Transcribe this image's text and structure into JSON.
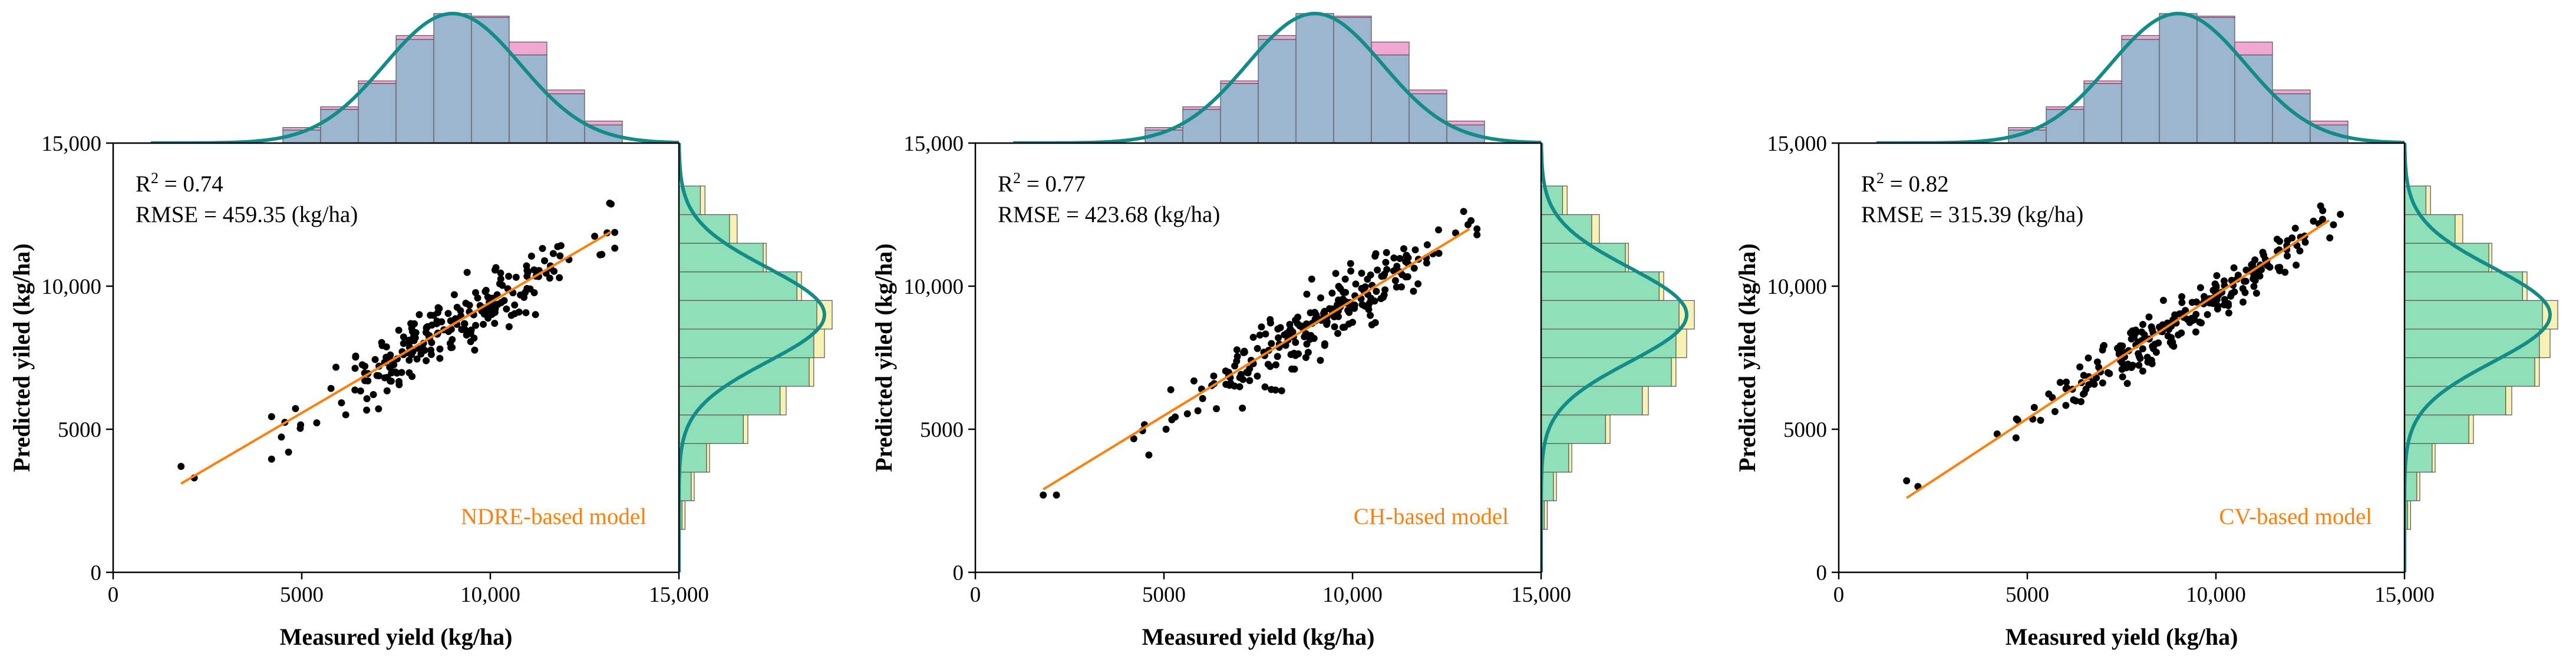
{
  "colors": {
    "points": "#000000",
    "fit_line": "#ff7f0e",
    "model_label": "#ff7f0e",
    "density_curve": "#138b87",
    "hist_measured": "#f0a8d2",
    "hist_predicted_measured": "#7ad6dc",
    "hist_overlap_top": "#9db6d0",
    "hist_predicted": "#f7f2b4",
    "hist_overlap_right": "#8fdfb8"
  },
  "chart_data": [
    {
      "type": "scatter",
      "model_label": "NDRE-based model",
      "r2_label": "R",
      "r2_sup": "2",
      "r2_value": " = 0.74",
      "rmse_text": "RMSE = 459.35 (kg/ha)",
      "xlabel": "Measured yield (kg/ha)",
      "ylabel": "Predicted yiled (kg/ha)",
      "xlim": [
        0,
        15000
      ],
      "ylim": [
        0,
        15000
      ],
      "xticks": [
        0,
        5000,
        10000,
        15000
      ],
      "xtick_labels": [
        "0",
        "5000",
        "10,000",
        "15,000"
      ],
      "yticks": [
        0,
        5000,
        10000,
        15000
      ],
      "ytick_labels": [
        "0",
        "5000",
        "10,000",
        "15,000"
      ],
      "fit_line": {
        "x": [
          1800,
          13200
        ],
        "y": [
          3100,
          11900
        ]
      },
      "scatter": {
        "n": 230,
        "seed": 11,
        "mean": 9000,
        "sd": 1800,
        "slope": 0.77,
        "intercept": 1700,
        "noise": 950,
        "extra": [
          [
            1800,
            3700
          ],
          [
            2150,
            3300
          ],
          [
            4650,
            4200
          ]
        ]
      },
      "hist_top": {
        "bins": [
          5000,
          6000,
          7000,
          8000,
          9000,
          10000,
          11000,
          12000,
          13000
        ],
        "measured": [
          0.12,
          0.28,
          0.48,
          0.83,
          1.0,
          0.98,
          0.78,
          0.41,
          0.17
        ],
        "predicted": [
          0.1,
          0.26,
          0.46,
          0.8,
          1.0,
          0.97,
          0.68,
          0.38,
          0.14
        ]
      },
      "hist_right": {
        "bins": [
          2000,
          3000,
          4000,
          5000,
          6000,
          7000,
          8000,
          9000,
          10000,
          11000,
          12000,
          13000
        ],
        "predicted": [
          0.04,
          0.1,
          0.2,
          0.45,
          0.7,
          0.88,
          0.95,
          1.0,
          0.8,
          0.57,
          0.38,
          0.17
        ],
        "measured": [
          0.02,
          0.08,
          0.18,
          0.42,
          0.66,
          0.85,
          0.88,
          0.9,
          0.77,
          0.55,
          0.33,
          0.14
        ]
      },
      "density": {
        "top_mean": 9000,
        "top_sd": 1800,
        "right_mean": 9000,
        "right_sd": 1650
      }
    },
    {
      "type": "scatter",
      "model_label": "CH-based model",
      "r2_label": "R",
      "r2_sup": "2",
      "r2_value": " = 0.77",
      "rmse_text": "RMSE = 423.68 (kg/ha)",
      "xlabel": "Measured yield (kg/ha)",
      "ylabel": "Predicted yiled (kg/ha)",
      "xlim": [
        0,
        15000
      ],
      "ylim": [
        0,
        15000
      ],
      "xticks": [
        0,
        5000,
        10000,
        15000
      ],
      "xtick_labels": [
        "0",
        "5000",
        "10,000",
        "15,000"
      ],
      "yticks": [
        0,
        5000,
        10000,
        15000
      ],
      "ytick_labels": [
        "0",
        "5000",
        "10,000",
        "15,000"
      ],
      "fit_line": {
        "x": [
          1800,
          13100
        ],
        "y": [
          2900,
          12000
        ]
      },
      "scatter": {
        "n": 230,
        "seed": 23,
        "mean": 9000,
        "sd": 1800,
        "slope": 0.8,
        "intercept": 1450,
        "noise": 900,
        "extra": [
          [
            1800,
            2700
          ],
          [
            2150,
            2700
          ],
          [
            4600,
            4100
          ]
        ]
      },
      "hist_top": {
        "bins": [
          5000,
          6000,
          7000,
          8000,
          9000,
          10000,
          11000,
          12000,
          13000
        ],
        "measured": [
          0.12,
          0.28,
          0.48,
          0.83,
          1.0,
          0.98,
          0.78,
          0.41,
          0.17
        ],
        "predicted": [
          0.1,
          0.26,
          0.46,
          0.8,
          1.0,
          0.97,
          0.68,
          0.38,
          0.14
        ]
      },
      "hist_right": {
        "bins": [
          2000,
          3000,
          4000,
          5000,
          6000,
          7000,
          8000,
          9000,
          10000,
          11000,
          12000,
          13000
        ],
        "predicted": [
          0.04,
          0.1,
          0.2,
          0.45,
          0.7,
          0.88,
          0.95,
          1.0,
          0.8,
          0.57,
          0.38,
          0.17
        ],
        "measured": [
          0.02,
          0.08,
          0.18,
          0.42,
          0.66,
          0.85,
          0.88,
          0.9,
          0.77,
          0.55,
          0.33,
          0.14
        ]
      },
      "density": {
        "top_mean": 9000,
        "top_sd": 1800,
        "right_mean": 9000,
        "right_sd": 1650
      }
    },
    {
      "type": "scatter",
      "model_label": "CV-based model",
      "r2_label": "R",
      "r2_sup": "2",
      "r2_value": " = 0.82",
      "rmse_text": "RMSE = 315.39 (kg/ha)",
      "xlabel": "Measured yield (kg/ha)",
      "ylabel": "Predicted yiled (kg/ha)",
      "xlim": [
        0,
        15000
      ],
      "ylim": [
        0,
        15000
      ],
      "xticks": [
        0,
        5000,
        10000,
        15000
      ],
      "xtick_labels": [
        "0",
        "5000",
        "10,000",
        "15,000"
      ],
      "yticks": [
        0,
        5000,
        10000,
        15000
      ],
      "ytick_labels": [
        "0",
        "5000",
        "10,000",
        "15,000"
      ],
      "fit_line": {
        "x": [
          1800,
          13000
        ],
        "y": [
          2600,
          12300
        ]
      },
      "scatter": {
        "n": 230,
        "seed": 37,
        "mean": 9000,
        "sd": 1800,
        "slope": 0.86,
        "intercept": 1050,
        "noise": 720,
        "extra": [
          [
            1800,
            3200
          ],
          [
            2100,
            3000
          ],
          [
            4700,
            4700
          ]
        ]
      },
      "hist_top": {
        "bins": [
          5000,
          6000,
          7000,
          8000,
          9000,
          10000,
          11000,
          12000,
          13000
        ],
        "measured": [
          0.12,
          0.28,
          0.48,
          0.83,
          1.0,
          0.98,
          0.78,
          0.41,
          0.17
        ],
        "predicted": [
          0.1,
          0.26,
          0.46,
          0.8,
          1.0,
          0.97,
          0.68,
          0.38,
          0.14
        ]
      },
      "hist_right": {
        "bins": [
          2000,
          3000,
          4000,
          5000,
          6000,
          7000,
          8000,
          9000,
          10000,
          11000,
          12000,
          13000
        ],
        "predicted": [
          0.04,
          0.1,
          0.2,
          0.45,
          0.7,
          0.88,
          0.95,
          1.0,
          0.8,
          0.57,
          0.38,
          0.17
        ],
        "measured": [
          0.02,
          0.08,
          0.18,
          0.42,
          0.66,
          0.85,
          0.88,
          0.9,
          0.77,
          0.55,
          0.33,
          0.14
        ]
      },
      "density": {
        "top_mean": 9000,
        "top_sd": 1800,
        "right_mean": 9000,
        "right_sd": 1650
      }
    }
  ]
}
